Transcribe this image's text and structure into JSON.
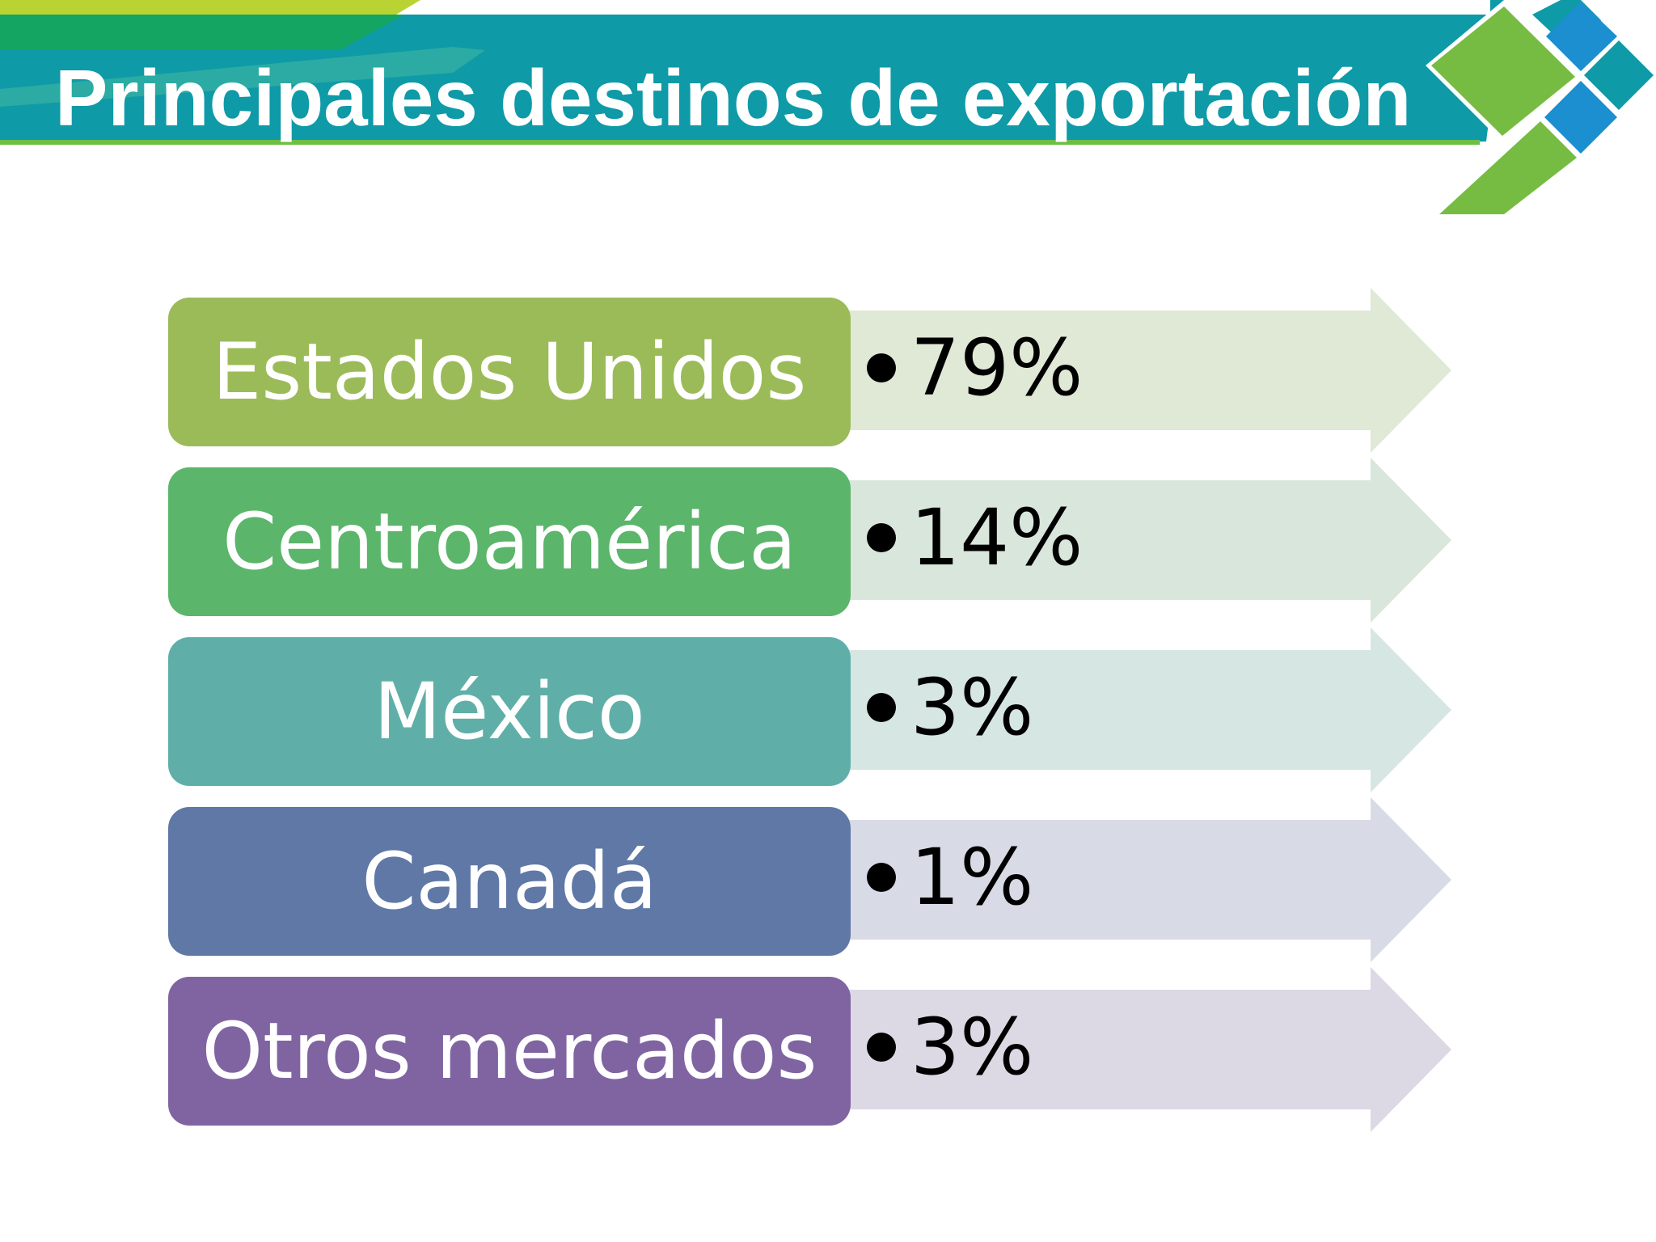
{
  "title": "Principales destinos de exportación",
  "destinations": [
    {
      "label": "Estados Unidos",
      "value": "79%",
      "color": "#9BBB59",
      "arrow_color": "#E0E8D6"
    },
    {
      "label": "Centroamérica",
      "value": "14%",
      "color": "#5BB56A",
      "arrow_color": "#D8E6DC"
    },
    {
      "label": "México",
      "value": "3%",
      "color": "#5FAFA8",
      "arrow_color": "#D6E6E3"
    },
    {
      "label": "Canadá",
      "value": "1%",
      "color": "#6078A6",
      "arrow_color": "#D8DBE5"
    },
    {
      "label": "Otros mercados",
      "value": "3%",
      "color": "#8064A2",
      "arrow_color": "#DCD8E4"
    }
  ]
}
